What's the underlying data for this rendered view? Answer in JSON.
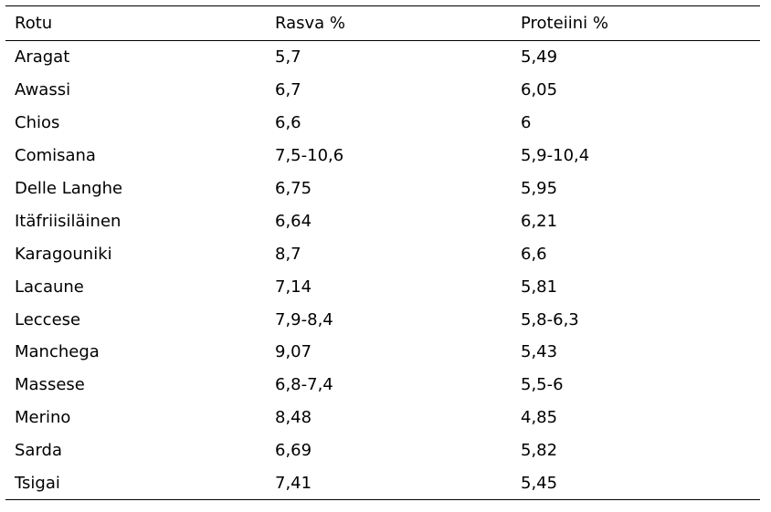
{
  "table": {
    "headers": [
      "Rotu",
      "Rasva %",
      "Proteiini %"
    ],
    "rows": [
      [
        "Aragat",
        "5,7",
        "5,49"
      ],
      [
        "Awassi",
        "6,7",
        "6,05"
      ],
      [
        "Chios",
        "6,6",
        "6"
      ],
      [
        "Comisana",
        "7,5-10,6",
        "5,9-10,4"
      ],
      [
        "Delle Langhe",
        "6,75",
        "5,95"
      ],
      [
        "Itäfriisiläinen",
        "6,64",
        "6,21"
      ],
      [
        "Karagouniki",
        "8,7",
        "6,6"
      ],
      [
        "Lacaune",
        "7,14",
        "5,81"
      ],
      [
        "Leccese",
        "7,9-8,4",
        "5,8-6,3"
      ],
      [
        "Manchega",
        "9,07",
        "5,43"
      ],
      [
        "Massese",
        "6,8-7,4",
        "5,5-6"
      ],
      [
        "Merino",
        "8,48",
        "4,85"
      ],
      [
        "Sarda",
        "6,69",
        "5,82"
      ],
      [
        "Tsigai",
        "7,41",
        "5,45"
      ]
    ]
  }
}
